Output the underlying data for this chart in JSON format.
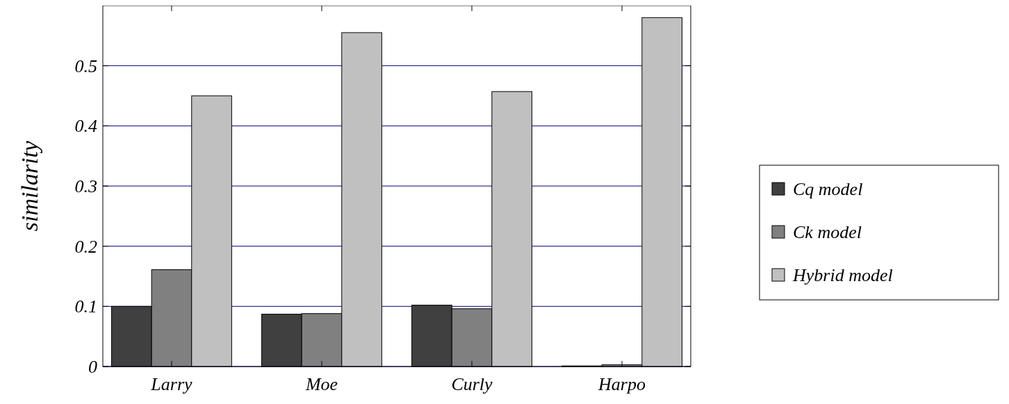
{
  "chart_data": {
    "type": "bar",
    "ylabel": "similarity",
    "categories": [
      "Larry",
      "Moe",
      "Curly",
      "Harpo"
    ],
    "series": [
      {
        "name": "Cq model",
        "color": "#404040",
        "values": [
          0.1,
          0.087,
          0.102,
          0.001
        ]
      },
      {
        "name": "Ck model",
        "color": "#808080",
        "values": [
          0.161,
          0.088,
          0.096,
          0.003
        ]
      },
      {
        "name": "Hybrid model",
        "color": "#c0c0c0",
        "values": [
          0.45,
          0.555,
          0.457,
          0.58
        ]
      }
    ],
    "ylim": [
      0,
      0.6
    ],
    "yticks": [
      0,
      0.1,
      0.2,
      0.3,
      0.4,
      0.5
    ],
    "grid": "y",
    "legend": "right"
  }
}
